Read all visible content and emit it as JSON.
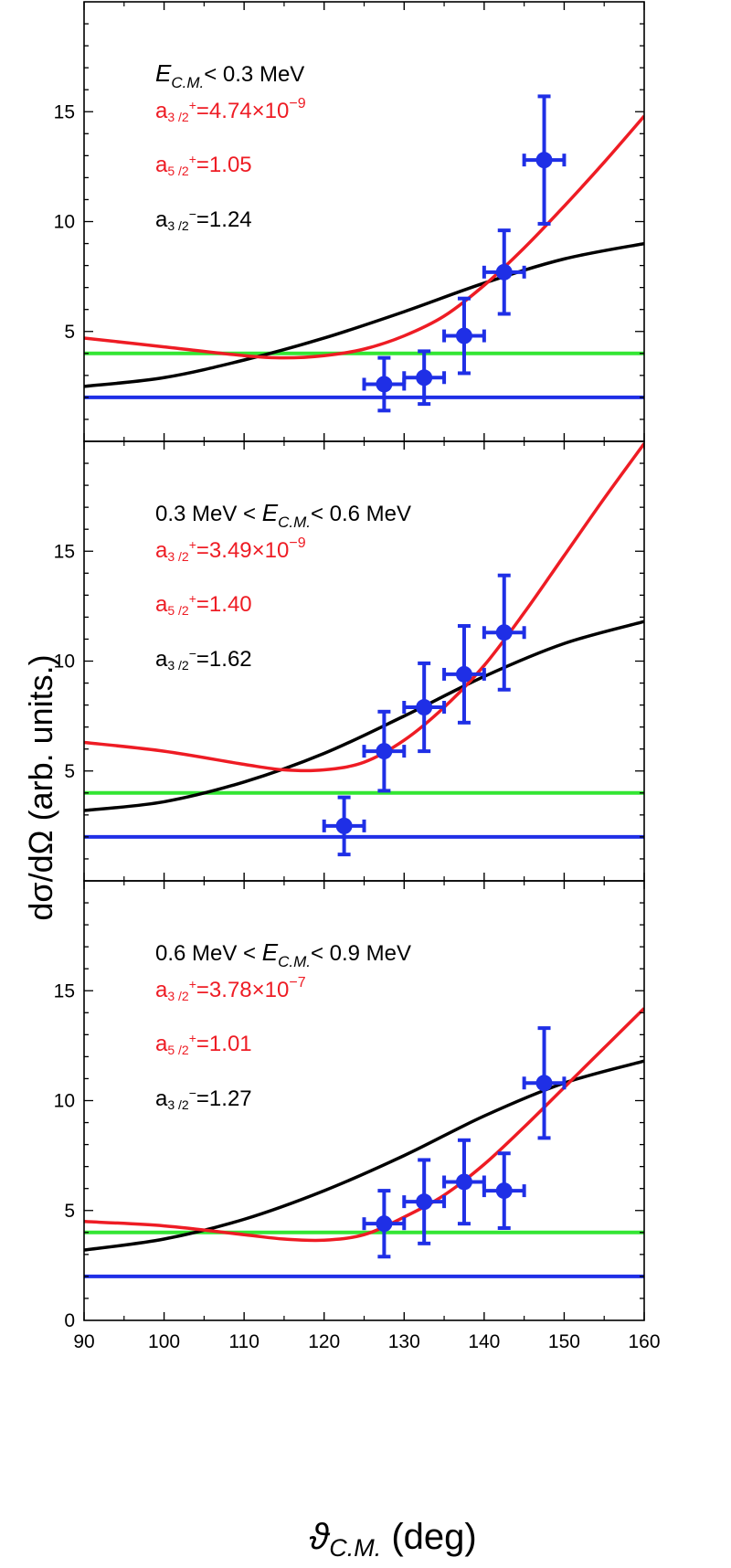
{
  "chart_data": {
    "type": "scatter",
    "xlabel_symbol": "ϑ",
    "xlabel_sub": "C.M.",
    "xlabel_unit": " (deg)",
    "ylabel": "dσ/dΩ (arb. units.)",
    "xlim": [
      90,
      160
    ],
    "ylim": [
      0,
      20
    ],
    "x_ticks": [
      90,
      100,
      110,
      120,
      130,
      140,
      150,
      160
    ],
    "y_ticks": [
      5,
      10,
      15
    ],
    "y_ticks_bottom": [
      0,
      5,
      10,
      15
    ],
    "colors": {
      "data": "#1f2fe6",
      "red_curve": "#ee1c24",
      "black_curve": "#000000",
      "green_line": "#33e633",
      "blue_line": "#1f2fe6"
    },
    "panels": [
      {
        "energy": {
          "prefix": "",
          "symbol": "E",
          "sub": "C.M.",
          "suffix": "< 0.3 MeV"
        },
        "params": [
          {
            "sym": "a",
            "sub": "3 /2",
            "sup": "+",
            "eq": "=4.74×10",
            "exp": "−9",
            "color": "red"
          },
          {
            "sym": "a",
            "sub": "5 /2",
            "sup": "+",
            "eq": "=1.05",
            "exp": "",
            "color": "red"
          },
          {
            "sym": "a",
            "sub": "3 /2",
            "sup": "−",
            "eq": "=1.24",
            "exp": "",
            "color": "black"
          }
        ],
        "points": [
          {
            "x": 127.5,
            "y": 2.6,
            "xerr": 2.5,
            "yerr": 1.2
          },
          {
            "x": 132.5,
            "y": 2.9,
            "xerr": 2.5,
            "yerr": 1.2
          },
          {
            "x": 137.5,
            "y": 4.8,
            "xerr": 2.5,
            "yerr": 1.7
          },
          {
            "x": 142.5,
            "y": 7.7,
            "xerr": 2.5,
            "yerr": 1.9
          },
          {
            "x": 147.5,
            "y": 12.8,
            "xerr": 2.5,
            "yerr": 2.9
          }
        ],
        "red_curve": [
          [
            90,
            4.7
          ],
          [
            100,
            4.3
          ],
          [
            110,
            3.9
          ],
          [
            115,
            3.8
          ],
          [
            120,
            3.9
          ],
          [
            125,
            4.2
          ],
          [
            130,
            4.8
          ],
          [
            135,
            5.7
          ],
          [
            140,
            7.1
          ],
          [
            145,
            8.8
          ],
          [
            150,
            10.7
          ],
          [
            155,
            12.7
          ],
          [
            160,
            14.8
          ]
        ],
        "black_curve": [
          [
            90,
            2.5
          ],
          [
            100,
            2.9
          ],
          [
            110,
            3.7
          ],
          [
            120,
            4.7
          ],
          [
            130,
            5.9
          ],
          [
            140,
            7.2
          ],
          [
            150,
            8.3
          ],
          [
            160,
            9.0
          ]
        ],
        "green_level": 4.0,
        "blue_level": 2.0
      },
      {
        "energy": {
          "prefix": "0.3 MeV < ",
          "symbol": "E",
          "sub": "C.M.",
          "suffix": "< 0.6 MeV"
        },
        "params": [
          {
            "sym": "a",
            "sub": "3 /2",
            "sup": "+",
            "eq": "=3.49×10",
            "exp": "−9",
            "color": "red"
          },
          {
            "sym": "a",
            "sub": "5 /2",
            "sup": "+",
            "eq": "=1.40",
            "exp": "",
            "color": "red"
          },
          {
            "sym": "a",
            "sub": "3 /2",
            "sup": "−",
            "eq": "=1.62",
            "exp": "",
            "color": "black"
          }
        ],
        "points": [
          {
            "x": 122.5,
            "y": 2.5,
            "xerr": 2.5,
            "yerr": 1.3
          },
          {
            "x": 127.5,
            "y": 5.9,
            "xerr": 2.5,
            "yerr": 1.8
          },
          {
            "x": 132.5,
            "y": 7.9,
            "xerr": 2.5,
            "yerr": 2.0
          },
          {
            "x": 137.5,
            "y": 9.4,
            "xerr": 2.5,
            "yerr": 2.2
          },
          {
            "x": 142.5,
            "y": 11.3,
            "xerr": 2.5,
            "yerr": 2.6
          }
        ],
        "red_curve": [
          [
            90,
            6.3
          ],
          [
            100,
            5.9
          ],
          [
            110,
            5.3
          ],
          [
            115,
            5.05
          ],
          [
            120,
            5.05
          ],
          [
            125,
            5.4
          ],
          [
            130,
            6.4
          ],
          [
            135,
            7.9
          ],
          [
            140,
            9.8
          ],
          [
            145,
            12.2
          ],
          [
            150,
            14.8
          ],
          [
            155,
            17.4
          ],
          [
            160,
            19.9
          ]
        ],
        "black_curve": [
          [
            90,
            3.2
          ],
          [
            100,
            3.6
          ],
          [
            110,
            4.5
          ],
          [
            120,
            5.8
          ],
          [
            130,
            7.5
          ],
          [
            140,
            9.3
          ],
          [
            150,
            10.8
          ],
          [
            160,
            11.8
          ]
        ],
        "green_level": 4.0,
        "blue_level": 2.0
      },
      {
        "energy": {
          "prefix": "0.6 MeV < ",
          "symbol": "E",
          "sub": "C.M.",
          "suffix": "< 0.9 MeV"
        },
        "params": [
          {
            "sym": "a",
            "sub": "3 /2",
            "sup": "+",
            "eq": "=3.78×10",
            "exp": "−7",
            "color": "red"
          },
          {
            "sym": "a",
            "sub": "5 /2",
            "sup": "+",
            "eq": "=1.01",
            "exp": "",
            "color": "red"
          },
          {
            "sym": "a",
            "sub": "3 /2",
            "sup": "−",
            "eq": "=1.27",
            "exp": "",
            "color": "black"
          }
        ],
        "points": [
          {
            "x": 127.5,
            "y": 4.4,
            "xerr": 2.5,
            "yerr": 1.5
          },
          {
            "x": 132.5,
            "y": 5.4,
            "xerr": 2.5,
            "yerr": 1.9
          },
          {
            "x": 137.5,
            "y": 6.3,
            "xerr": 2.5,
            "yerr": 1.9
          },
          {
            "x": 142.5,
            "y": 5.9,
            "xerr": 2.5,
            "yerr": 1.7
          },
          {
            "x": 147.5,
            "y": 10.8,
            "xerr": 2.5,
            "yerr": 2.5
          }
        ],
        "red_curve": [
          [
            90,
            4.5
          ],
          [
            100,
            4.3
          ],
          [
            110,
            3.9
          ],
          [
            115,
            3.7
          ],
          [
            120,
            3.65
          ],
          [
            125,
            3.9
          ],
          [
            130,
            4.7
          ],
          [
            135,
            5.7
          ],
          [
            140,
            7.1
          ],
          [
            145,
            8.8
          ],
          [
            150,
            10.6
          ],
          [
            155,
            12.4
          ],
          [
            160,
            14.2
          ]
        ],
        "black_curve": [
          [
            90,
            3.2
          ],
          [
            100,
            3.7
          ],
          [
            110,
            4.6
          ],
          [
            120,
            5.9
          ],
          [
            130,
            7.5
          ],
          [
            140,
            9.3
          ],
          [
            150,
            10.8
          ],
          [
            160,
            11.8
          ]
        ],
        "green_level": 4.0,
        "blue_level": 2.0
      }
    ]
  }
}
